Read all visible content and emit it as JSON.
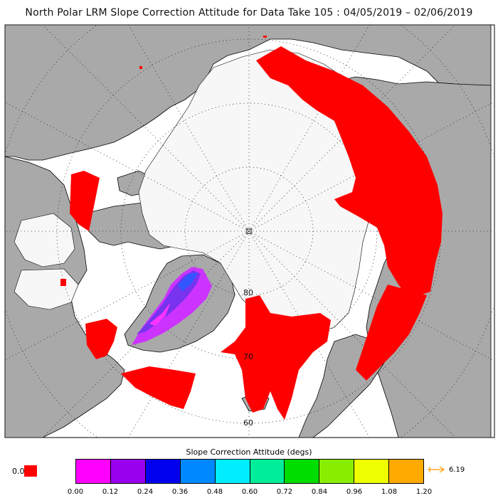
{
  "title": "North Polar LRM Slope Correction Attitude for Data Take 105 : 04/05/2019 – 02/06/2019",
  "map": {
    "projection": "north-polar-stereographic",
    "graticule_style": "dotted",
    "lat_labels": [
      "80",
      "70",
      "60"
    ],
    "colors": {
      "ocean": "#ffffff",
      "land": "#a9a9a9",
      "sea_ice": "#f7f7f7",
      "coastline": "#000000",
      "zero_value": "#ff0000"
    }
  },
  "legend": {
    "title": "Slope Correction Attitude (degs)",
    "zero_label": "0.0",
    "zero_color": "#ff0000",
    "ticks": [
      "0.00",
      "0.12",
      "0.24",
      "0.36",
      "0.48",
      "0.60",
      "0.72",
      "0.84",
      "0.96",
      "1.08",
      "1.20"
    ],
    "colors": [
      "#ff00ff",
      "#9900ee",
      "#0000ee",
      "#0088ff",
      "#00eeff",
      "#00ee99",
      "#00dd00",
      "#88ee00",
      "#eeff00",
      "#ffaa00"
    ],
    "overflow_color": "#ff9900",
    "max_label": "6.19"
  }
}
